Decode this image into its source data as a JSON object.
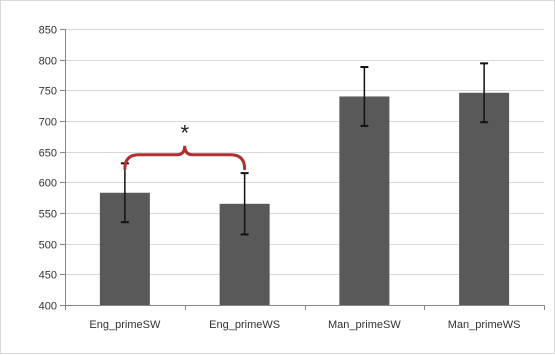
{
  "chart_data": {
    "type": "bar",
    "categories": [
      "Eng_primeSW",
      "Eng_primeWS",
      "Man_primeSW",
      "Man_primeWS"
    ],
    "values": [
      583,
      565,
      740,
      746
    ],
    "error": [
      48,
      50,
      48,
      48
    ],
    "ylim": [
      400,
      850
    ],
    "yticks": [
      400,
      450,
      500,
      550,
      600,
      650,
      700,
      750,
      800,
      850
    ],
    "grid": true,
    "bar_color": "#595959",
    "grid_color": "#d9d9d9",
    "annotations": [
      {
        "text": "*",
        "type": "significance-bracket",
        "from_category": 0,
        "to_category": 1,
        "at_value": 645,
        "color": "#b03030"
      }
    ]
  }
}
